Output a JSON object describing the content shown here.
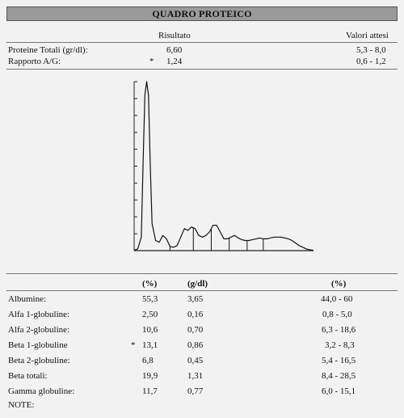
{
  "header": {
    "title": "QUADRO PROTEICO"
  },
  "summary": {
    "col_result": "Risultato",
    "col_expected": "Valori attesi",
    "rows": [
      {
        "label": "Proteine Totali (gr/dl):",
        "flag": "",
        "value": "6,60",
        "range": "5,3 - 8,0"
      },
      {
        "label": "Rapporto A/G:",
        "flag": "*",
        "value": "1,24",
        "range": "0,6 - 1,2"
      }
    ]
  },
  "chart_data": {
    "type": "line",
    "title": "",
    "xlabel": "",
    "ylabel": "",
    "x": [
      0,
      2,
      4,
      5,
      6,
      7,
      8,
      9,
      10,
      12,
      14,
      16,
      18,
      20,
      22,
      24,
      26,
      28,
      30,
      32,
      34,
      36,
      38,
      40,
      42,
      44,
      46,
      48,
      50,
      52,
      54,
      56,
      58,
      60,
      62,
      64,
      66,
      68,
      70,
      72,
      74,
      76,
      78,
      80,
      82,
      84,
      86,
      88,
      90,
      92,
      94,
      96,
      98,
      100
    ],
    "series": [
      {
        "values": [
          0.2,
          1.0,
          8.0,
          52.0,
          92.0,
          100.0,
          92.0,
          50.0,
          16.0,
          6.0,
          5.0,
          9.0,
          7.0,
          2.5,
          2.0,
          3.0,
          8.0,
          13.0,
          12.0,
          14.0,
          13.0,
          9.0,
          8.0,
          9.0,
          11.0,
          15.0,
          15.0,
          11.0,
          7.0,
          7.0,
          8.0,
          9.0,
          7.5,
          6.5,
          6.0,
          6.0,
          6.5,
          7.0,
          7.5,
          7.0,
          7.0,
          7.5,
          8.0,
          8.0,
          8.0,
          7.5,
          7.0,
          6.0,
          4.5,
          3.0,
          2.0,
          1.0,
          0.5,
          0.2
        ]
      }
    ],
    "fraction_cuts": [
      20,
      33,
      43,
      53,
      63,
      72
    ],
    "ylim": [
      0,
      100
    ],
    "xlim": [
      0,
      100
    ],
    "y_tick_count": 10
  },
  "fractions_table": {
    "headers": {
      "pct": "(%)",
      "gdl": "(g/dl)",
      "ref": "(%)"
    },
    "rows": [
      {
        "label": "Albumine:",
        "flag": "",
        "pct": "55,3",
        "gdl": "3,65",
        "ref": "44,0 - 60"
      },
      {
        "label": "Alfa 1-globuline:",
        "flag": "",
        "pct": "2,50",
        "gdl": "0,16",
        "ref": "0,8 - 5,0"
      },
      {
        "label": "Alfa 2-globuline:",
        "flag": "",
        "pct": "10,6",
        "gdl": "0,70",
        "ref": "6,3 - 18,6"
      },
      {
        "label": "Beta 1-globuline",
        "flag": "*",
        "pct": "13,1",
        "gdl": "0,86",
        "ref": "3,2 - 8,3"
      },
      {
        "label": "Beta 2-globuline:",
        "flag": "",
        "pct": "6,8",
        "gdl": "0,45",
        "ref": "5,4 - 16,5"
      },
      {
        "label": "Beta totali:",
        "flag": "",
        "pct": "19,9",
        "gdl": "1,31",
        "ref": "8,4 - 28,5"
      },
      {
        "label": "Gamma globuline:",
        "flag": "",
        "pct": "11,7",
        "gdl": "0,77",
        "ref": "6,0 - 15,1"
      }
    ],
    "note_label": "NOTE:"
  }
}
